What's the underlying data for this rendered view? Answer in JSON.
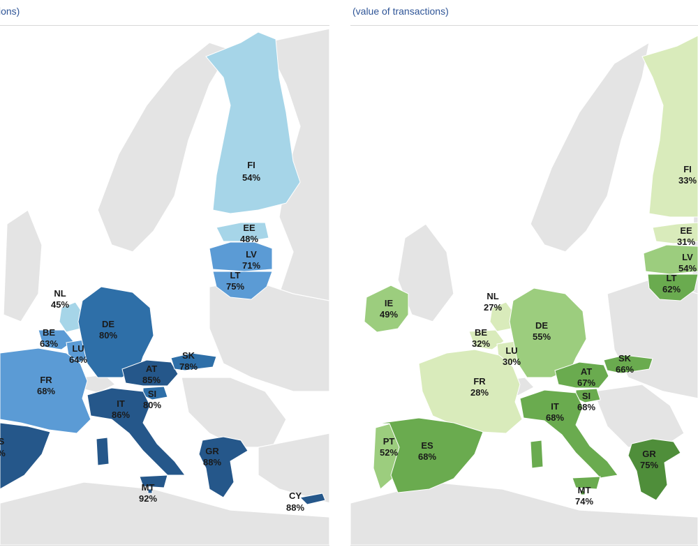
{
  "panels": [
    {
      "id": "left",
      "title": "ions)",
      "colors": {
        "light": "#a6d5e8",
        "mid": "#5b9bd5",
        "dark": "#2e6fa8",
        "darker": "#25578a"
      },
      "countries": [
        {
          "code": "FI",
          "value": "54%",
          "shade": "light"
        },
        {
          "code": "EE",
          "value": "48%",
          "shade": "light"
        },
        {
          "code": "LV",
          "value": "71%",
          "shade": "mid"
        },
        {
          "code": "LT",
          "value": "75%",
          "shade": "mid"
        },
        {
          "code": "NL",
          "value": "45%",
          "shade": "light"
        },
        {
          "code": "BE",
          "value": "63%",
          "shade": "mid"
        },
        {
          "code": "LU",
          "value": "64%",
          "shade": "mid"
        },
        {
          "code": "DE",
          "value": "80%",
          "shade": "dark"
        },
        {
          "code": "FR",
          "value": "68%",
          "shade": "mid"
        },
        {
          "code": "AT",
          "value": "85%",
          "shade": "darker"
        },
        {
          "code": "SK",
          "value": "78%",
          "shade": "dark"
        },
        {
          "code": "SI",
          "value": "80%",
          "shade": "dark"
        },
        {
          "code": "IT",
          "value": "86%",
          "shade": "darker"
        },
        {
          "code": "GR",
          "value": "88%",
          "shade": "darker"
        },
        {
          "code": "MT",
          "value": "92%",
          "shade": "darker"
        },
        {
          "code": "CY",
          "value": "88%",
          "shade": "darker"
        },
        {
          "code": "S",
          "value": "%",
          "shade": "darker"
        }
      ]
    },
    {
      "id": "right",
      "title": "(value of transactions)",
      "colors": {
        "light": "#d9ebbb",
        "mid": "#9ccd7e",
        "dark": "#6aab4f",
        "darker": "#4f8e3a"
      },
      "countries": [
        {
          "code": "FI",
          "value": "33%",
          "shade": "light"
        },
        {
          "code": "EE",
          "value": "31%",
          "shade": "light"
        },
        {
          "code": "LV",
          "value": "54%",
          "shade": "mid"
        },
        {
          "code": "LT",
          "value": "62%",
          "shade": "dark"
        },
        {
          "code": "NL",
          "value": "27%",
          "shade": "light"
        },
        {
          "code": "IE",
          "value": "49%",
          "shade": "mid"
        },
        {
          "code": "BE",
          "value": "32%",
          "shade": "light"
        },
        {
          "code": "LU",
          "value": "30%",
          "shade": "light"
        },
        {
          "code": "DE",
          "value": "55%",
          "shade": "mid"
        },
        {
          "code": "FR",
          "value": "28%",
          "shade": "light"
        },
        {
          "code": "AT",
          "value": "67%",
          "shade": "dark"
        },
        {
          "code": "SK",
          "value": "66%",
          "shade": "dark"
        },
        {
          "code": "SI",
          "value": "68%",
          "shade": "dark"
        },
        {
          "code": "IT",
          "value": "68%",
          "shade": "dark"
        },
        {
          "code": "PT",
          "value": "52%",
          "shade": "mid"
        },
        {
          "code": "ES",
          "value": "68%",
          "shade": "dark"
        },
        {
          "code": "GR",
          "value": "75%",
          "shade": "darker"
        },
        {
          "code": "MT",
          "value": "74%",
          "shade": "darker"
        }
      ]
    }
  ]
}
